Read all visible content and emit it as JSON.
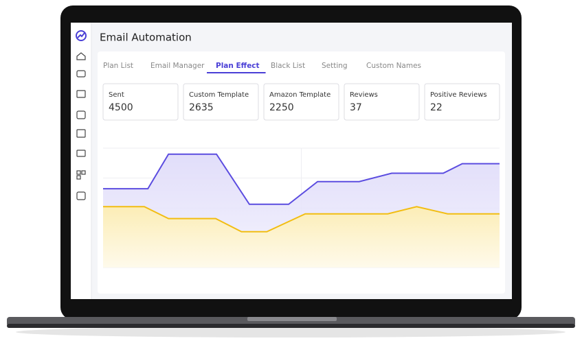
{
  "header": {
    "title": "Email Automation"
  },
  "tabs": [
    "Plan List",
    "Email Manager",
    "Plan Effect",
    "Black List",
    "Setting",
    "Custom Names"
  ],
  "active_tab": 2,
  "stats": [
    {
      "label": "Sent",
      "value": "4500"
    },
    {
      "label": "Custom Template",
      "value": "2635"
    },
    {
      "label": "Amazon Template",
      "value": "2250"
    },
    {
      "label": "Reviews",
      "value": "37"
    },
    {
      "label": "Positive Reviews",
      "value": "22"
    }
  ],
  "chart_data": {
    "type": "area",
    "xlim": [
      0,
      100
    ],
    "ylim": [
      0,
      100
    ],
    "grid": true,
    "series": [
      {
        "color": "#5b4ce0",
        "fill": "#e6e3fb",
        "x": [
          0,
          11.3,
          16.5,
          28.6,
          36.9,
          46.8,
          54.1,
          64.6,
          72.8,
          85.8,
          90.6,
          100
        ],
        "values": [
          66,
          66,
          95,
          95,
          53,
          53,
          72,
          72,
          79,
          79,
          87,
          87
        ]
      },
      {
        "color": "#f2bd12",
        "fill": "#fdf1c4",
        "x": [
          0,
          10.4,
          16.5,
          28.4,
          34.9,
          41.3,
          51,
          71.8,
          79.1,
          86.9,
          100
        ],
        "values": [
          51,
          51,
          41,
          41,
          30,
          30,
          45,
          45,
          51,
          45,
          45
        ]
      }
    ]
  }
}
